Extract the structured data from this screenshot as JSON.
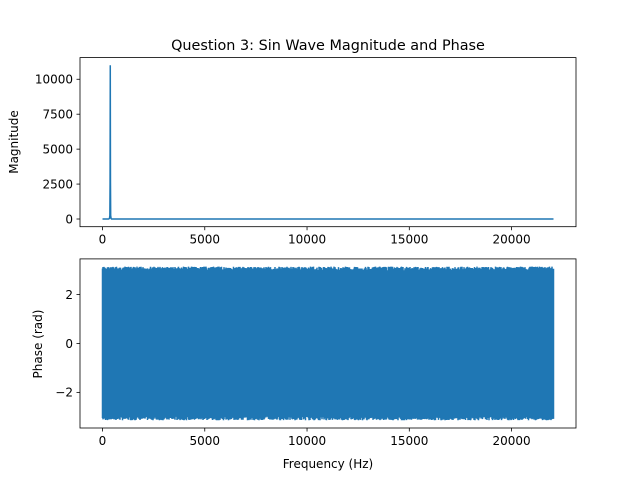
{
  "figure": {
    "title": "Question 3: Sin Wave Magnitude and Phase",
    "line_color": "#1f77b4"
  },
  "chart_data": [
    {
      "type": "line",
      "panel": "top",
      "title": "Question 3: Sin Wave Magnitude and Phase",
      "xlabel": "",
      "ylabel": "Magnitude",
      "xlim": [
        -1100,
        23150
      ],
      "ylim": [
        -550,
        11550
      ],
      "xticks": [
        0,
        5000,
        10000,
        15000,
        20000
      ],
      "xtick_labels": [
        "0",
        "5000",
        "10000",
        "15000",
        "20000"
      ],
      "yticks": [
        0,
        2500,
        5000,
        7500,
        10000
      ],
      "ytick_labels": [
        "0",
        "2500",
        "5000",
        "7500",
        "10000"
      ],
      "grid": false,
      "series": [
        {
          "color": "#1f77b4",
          "x": [
            0,
            300,
            340,
            360,
            370,
            380,
            390,
            400,
            420,
            440,
            480,
            22050
          ],
          "y": [
            0,
            0,
            40,
            250,
            2600,
            11000,
            2600,
            250,
            40,
            0,
            0,
            0
          ]
        }
      ]
    },
    {
      "type": "line",
      "panel": "bottom",
      "xlabel": "Frequency (Hz)",
      "ylabel": "Phase (rad)",
      "xlim": [
        -1100,
        23150
      ],
      "ylim": [
        -3.456,
        3.456
      ],
      "xticks": [
        0,
        5000,
        10000,
        15000,
        20000
      ],
      "xtick_labels": [
        "0",
        "5000",
        "10000",
        "15000",
        "20000"
      ],
      "yticks": [
        -2,
        0,
        2
      ],
      "ytick_labels": [
        "−2",
        "0",
        "2"
      ],
      "grid": false,
      "series": [
        {
          "color": "#1f77b4",
          "description_range": [
            0,
            22050
          ],
          "y_range": [
            -3.14159,
            3.14159
          ],
          "x": [
            0,
            22050
          ],
          "y_min": [
            -3.14159,
            -3.14159
          ],
          "y_max": [
            3.14159,
            3.14159
          ]
        }
      ]
    }
  ]
}
